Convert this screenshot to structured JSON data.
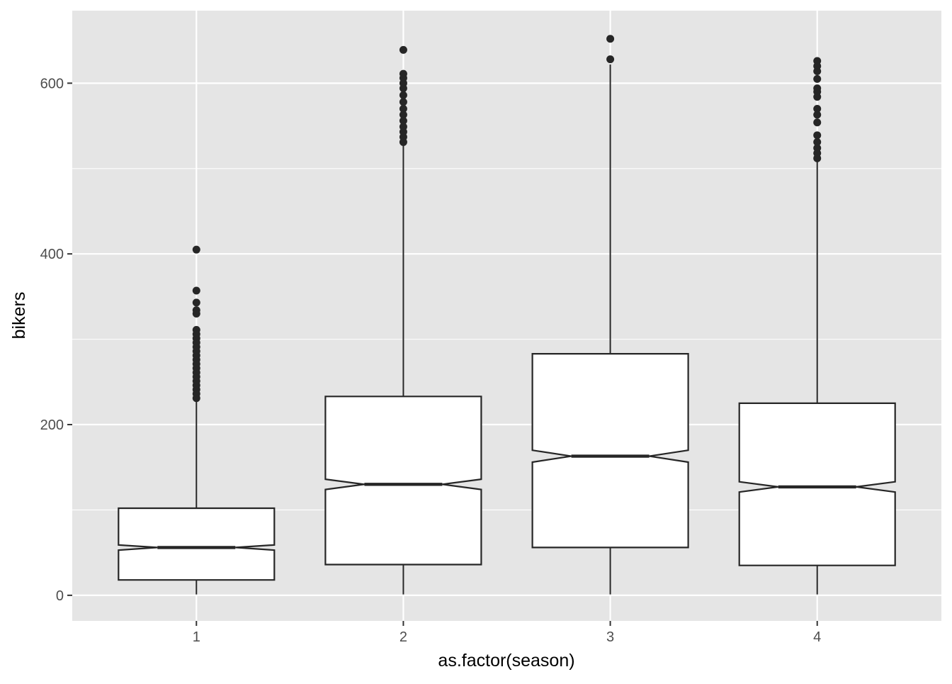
{
  "chart_data": {
    "type": "boxplot",
    "title": "",
    "xlabel": "as.factor(season)",
    "ylabel": "bikers",
    "categories": [
      "1",
      "2",
      "3",
      "4"
    ],
    "ylim": [
      -30,
      685
    ],
    "y_ticks": [
      0,
      200,
      400,
      600
    ],
    "y_tick_labels": [
      "0",
      "200",
      "400",
      "600"
    ],
    "notched": true,
    "grid": true,
    "panel_background": "#e5e5e5",
    "grid_color": "#ffffff",
    "box_fill": "#ffffff",
    "box_stroke": "#262626",
    "boxes": [
      {
        "category": "1",
        "lower_whisker": 1,
        "q1": 18,
        "median": 56,
        "notch_low": 53,
        "notch_high": 59,
        "q3": 102,
        "upper_whisker": 228,
        "outliers": [
          231,
          236,
          241,
          246,
          251,
          256,
          261,
          266,
          271,
          276,
          281,
          286,
          291,
          296,
          301,
          306,
          311,
          330,
          334,
          343,
          357,
          405
        ]
      },
      {
        "category": "2",
        "lower_whisker": 1,
        "q1": 36,
        "median": 130,
        "notch_low": 124,
        "notch_high": 136,
        "q3": 233,
        "upper_whisker": 528,
        "outliers": [
          531,
          537,
          543,
          549,
          556,
          563,
          570,
          578,
          586,
          594,
          600,
          606,
          611,
          639
        ]
      },
      {
        "category": "3",
        "lower_whisker": 1,
        "q1": 56,
        "median": 163,
        "notch_low": 156,
        "notch_high": 170,
        "q3": 283,
        "upper_whisker": 622,
        "outliers": [
          628,
          652
        ]
      },
      {
        "category": "4",
        "lower_whisker": 1,
        "q1": 35,
        "median": 127,
        "notch_low": 121,
        "notch_high": 133,
        "q3": 225,
        "upper_whisker": 509,
        "outliers": [
          512,
          518,
          524,
          531,
          539,
          554,
          563,
          570,
          584,
          590,
          594,
          605,
          614,
          620,
          626
        ]
      }
    ]
  }
}
